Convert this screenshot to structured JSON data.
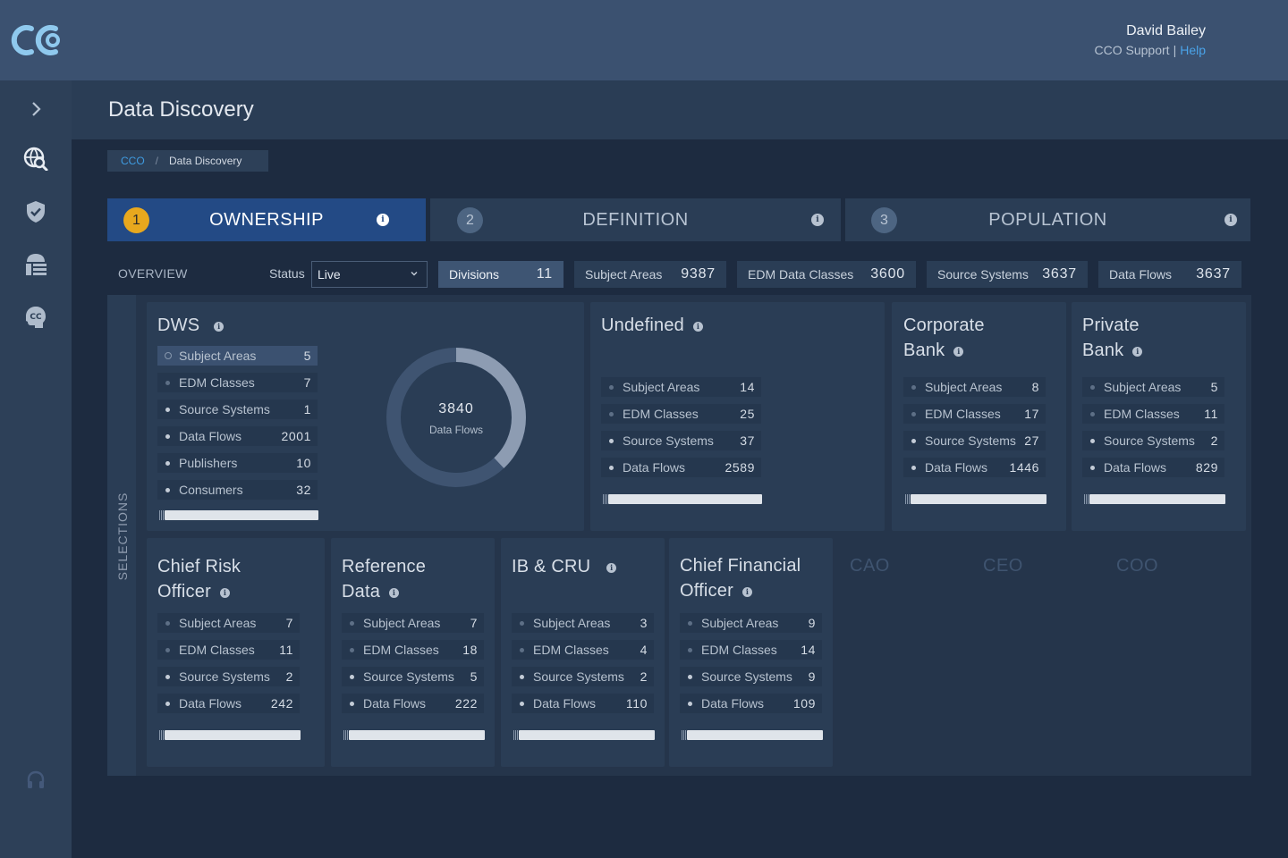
{
  "header": {
    "logo_text": "CC",
    "user_name": "David Bailey",
    "user_org": "CCO Support",
    "separator": "|",
    "help_link": "Help"
  },
  "sidebar": {
    "items": [
      {
        "icon": "chevron-right-icon"
      },
      {
        "icon": "data-discovery-icon"
      },
      {
        "icon": "shield-check-icon"
      },
      {
        "icon": "data-lineage-icon"
      },
      {
        "icon": "cco-profile-icon"
      },
      {
        "icon": "headset-icon"
      }
    ]
  },
  "page": {
    "title": "Data Discovery",
    "breadcrumb": {
      "root": "CCO",
      "separator": "/",
      "current": "Data Discovery"
    }
  },
  "steps": [
    {
      "num": "1",
      "label": "OWNERSHIP",
      "active": true
    },
    {
      "num": "2",
      "label": "DEFINITION",
      "active": false
    },
    {
      "num": "3",
      "label": "POPULATION",
      "active": false
    }
  ],
  "info_glyph": "i",
  "overview": {
    "label": "OVERVIEW",
    "status_label": "Status",
    "status_value": "Live",
    "stats": [
      {
        "label": "Divisions",
        "value": "11",
        "active": true
      },
      {
        "label": "Subject Areas",
        "value": "9387"
      },
      {
        "label": "EDM Data Classes",
        "value": "3600"
      },
      {
        "label": "Source Systems",
        "value": "3637"
      },
      {
        "label": "Data Flows",
        "value": "3637"
      }
    ]
  },
  "selections": {
    "label": "SELECTIONS",
    "cards": [
      {
        "title": "DWS",
        "metrics": [
          {
            "label": "Subject Areas",
            "value": "5"
          },
          {
            "label": "EDM Classes",
            "value": "7"
          },
          {
            "label": "Source Systems",
            "value": "1"
          },
          {
            "label": "Data Flows",
            "value": "2001"
          },
          {
            "label": "Publishers",
            "value": "10"
          },
          {
            "label": "Consumers",
            "value": "32"
          }
        ],
        "donut": {
          "value": "3840",
          "label": "Data Flows",
          "highlight_fraction": 0.38
        }
      },
      {
        "title": "Undefined",
        "metrics": [
          {
            "label": "Subject Areas",
            "value": "14"
          },
          {
            "label": "EDM Classes",
            "value": "25"
          },
          {
            "label": "Source Systems",
            "value": "37"
          },
          {
            "label": "Data Flows",
            "value": "2589"
          }
        ]
      },
      {
        "title_lines": [
          "Corporate",
          "Bank"
        ],
        "metrics": [
          {
            "label": "Subject Areas",
            "value": "8"
          },
          {
            "label": "EDM Classes",
            "value": "17"
          },
          {
            "label": "Source Systems",
            "value": "27"
          },
          {
            "label": "Data Flows",
            "value": "1446"
          }
        ]
      },
      {
        "title_lines": [
          "Private",
          "Bank"
        ],
        "metrics": [
          {
            "label": "Subject Areas",
            "value": "5"
          },
          {
            "label": "EDM Classes",
            "value": "11"
          },
          {
            "label": "Source Systems",
            "value": "2"
          },
          {
            "label": "Data Flows",
            "value": "829"
          }
        ]
      },
      {
        "title_lines": [
          "Chief Risk",
          "Officer"
        ],
        "metrics": [
          {
            "label": "Subject Areas",
            "value": "7"
          },
          {
            "label": "EDM Classes",
            "value": "11"
          },
          {
            "label": "Source Systems",
            "value": "2"
          },
          {
            "label": "Data Flows",
            "value": "242"
          }
        ]
      },
      {
        "title_lines": [
          "Reference",
          "Data"
        ],
        "metrics": [
          {
            "label": "Subject Areas",
            "value": "7"
          },
          {
            "label": "EDM Classes",
            "value": "18"
          },
          {
            "label": "Source Systems",
            "value": "5"
          },
          {
            "label": "Data Flows",
            "value": "222"
          }
        ]
      },
      {
        "title": "IB & CRU",
        "metrics": [
          {
            "label": "Subject Areas",
            "value": "3"
          },
          {
            "label": "EDM Classes",
            "value": "4"
          },
          {
            "label": "Source Systems",
            "value": "2"
          },
          {
            "label": "Data Flows",
            "value": "110"
          }
        ]
      },
      {
        "title_lines": [
          "Chief Financial",
          "Officer"
        ],
        "metrics": [
          {
            "label": "Subject Areas",
            "value": "9"
          },
          {
            "label": "EDM Classes",
            "value": "14"
          },
          {
            "label": "Source Systems",
            "value": "9"
          },
          {
            "label": "Data Flows",
            "value": "109"
          }
        ]
      }
    ],
    "inactive_divisions": [
      "CAO",
      "CEO",
      "COO"
    ]
  }
}
